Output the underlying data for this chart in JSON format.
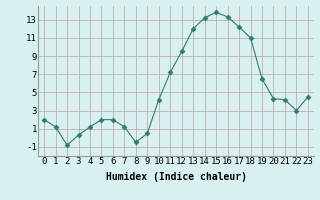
{
  "x": [
    0,
    1,
    2,
    3,
    4,
    5,
    6,
    7,
    8,
    9,
    10,
    11,
    12,
    13,
    14,
    15,
    16,
    17,
    18,
    19,
    20,
    21,
    22,
    23
  ],
  "y": [
    2.0,
    1.2,
    -0.8,
    0.3,
    1.2,
    2.0,
    2.0,
    1.2,
    -0.5,
    0.5,
    4.2,
    7.2,
    9.5,
    12.0,
    13.2,
    13.8,
    13.3,
    12.2,
    11.0,
    6.5,
    4.3,
    4.2,
    3.0,
    4.5
  ],
  "line_color": "#2e7d6e",
  "marker": "D",
  "marker_size": 2.5,
  "bg_color": "#d9f0f0",
  "grid_color": "#c0a0a0",
  "xlabel": "Humidex (Indice chaleur)",
  "xlim": [
    -0.5,
    23.5
  ],
  "ylim": [
    -2.0,
    14.5
  ],
  "yticks": [
    -1,
    1,
    3,
    5,
    7,
    9,
    11,
    13
  ],
  "xtick_labels": [
    "0",
    "1",
    "2",
    "3",
    "4",
    "5",
    "6",
    "7",
    "8",
    "9",
    "10",
    "11",
    "12",
    "13",
    "14",
    "15",
    "16",
    "17",
    "18",
    "19",
    "20",
    "21",
    "22",
    "23"
  ],
  "xlabel_fontsize": 7,
  "tick_fontsize": 6.5
}
